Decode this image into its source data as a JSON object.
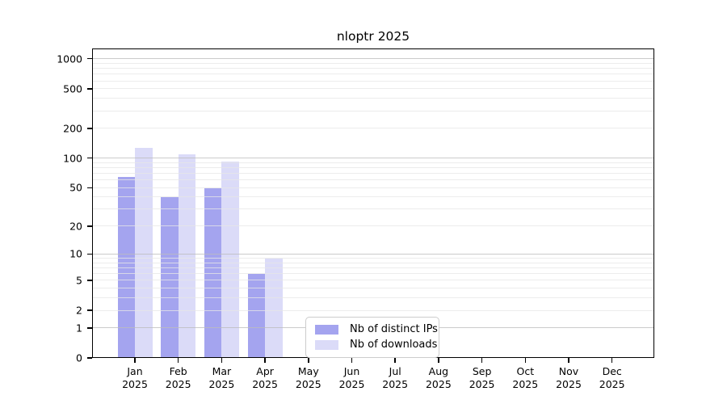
{
  "chart_data": {
    "type": "bar",
    "title": "nloptr 2025",
    "categories": [
      "Jan",
      "Feb",
      "Mar",
      "Apr",
      "May",
      "Jun",
      "Jul",
      "Aug",
      "Sep",
      "Oct",
      "Nov",
      "Dec"
    ],
    "category_year": "2025",
    "series": [
      {
        "name": "Nb of distinct IPs",
        "color": "#a4a4ef",
        "values": [
          64,
          40,
          49,
          6,
          null,
          null,
          null,
          null,
          null,
          null,
          null,
          null
        ]
      },
      {
        "name": "Nb of downloads",
        "color": "#dbdbf8",
        "values": [
          126,
          110,
          92,
          9,
          null,
          null,
          null,
          null,
          null,
          null,
          null,
          null
        ]
      }
    ],
    "xlabel": "",
    "ylabel": "",
    "scale": "log1p",
    "ylim": [
      0,
      1268
    ],
    "y_ticks": [
      0,
      1,
      2,
      5,
      10,
      20,
      50,
      100,
      200,
      500,
      1000
    ],
    "grid": {
      "on": true,
      "major": [
        1,
        10,
        100,
        1000
      ],
      "minor": [
        2,
        3,
        4,
        5,
        6,
        7,
        8,
        9,
        20,
        30,
        40,
        50,
        60,
        70,
        80,
        90,
        200,
        300,
        400,
        500,
        600,
        700,
        800,
        900
      ]
    },
    "legend_position": "bottom-center-inside"
  }
}
